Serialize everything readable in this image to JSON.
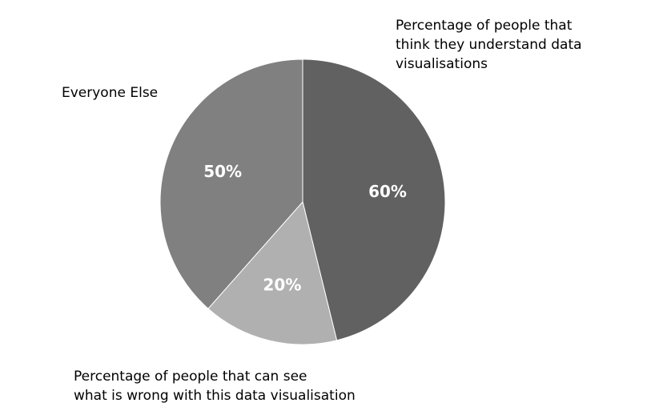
{
  "chart_data": {
    "type": "pie",
    "title": "",
    "start": "12 o'clock, clockwise",
    "slices": [
      {
        "label": "Percentage of people that think they understand data visualisations",
        "value": 60,
        "data_label": "60%",
        "color": "#616161"
      },
      {
        "label": "Percentage of people that can see what is wrong with this data visualisation",
        "value": 20,
        "data_label": "20%",
        "color": "#b0b0b0"
      },
      {
        "label": "Everyone Else",
        "value": 50,
        "data_label": "50%",
        "color": "#808080"
      }
    ],
    "legend": "none; category labels beside slices",
    "data_label_color": "#ffffff"
  }
}
